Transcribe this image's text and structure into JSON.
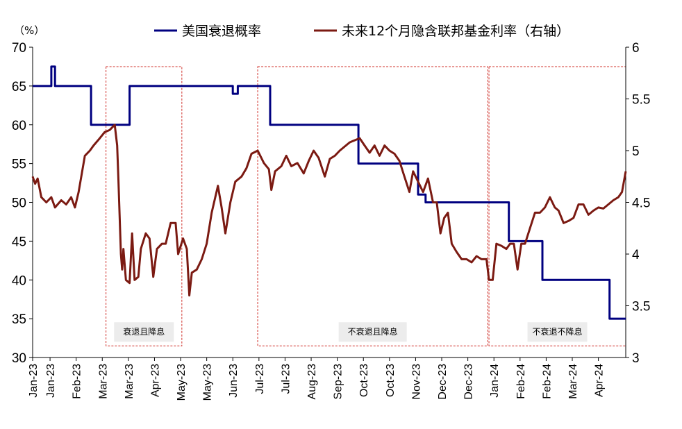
{
  "chart_data": {
    "type": "line",
    "unit_label": "（%）",
    "yleft": {
      "min": 30,
      "max": 70,
      "ticks": [
        30,
        35,
        40,
        45,
        50,
        55,
        60,
        65,
        70
      ]
    },
    "yright": {
      "min": 3,
      "max": 6,
      "ticks": [
        "3",
        "3.5",
        "4",
        "4.5",
        "5",
        "5.5",
        "6"
      ]
    },
    "x": {
      "start": "2023-01-01",
      "end": "2024-04-22",
      "tick_dates": [
        "2023-01-01",
        "2023-01-15",
        "2023-02-05",
        "2023-02-26",
        "2023-03-19",
        "2023-04-09",
        "2023-04-30",
        "2023-05-21",
        "2023-06-11",
        "2023-07-02",
        "2023-07-23",
        "2023-08-13",
        "2023-09-03",
        "2023-09-24",
        "2023-10-15",
        "2023-11-05",
        "2023-11-26",
        "2023-12-17",
        "2024-01-07",
        "2024-01-28",
        "2024-02-18",
        "2024-03-10",
        "2024-03-31"
      ],
      "tick_labels": [
        "Jan-23",
        "Jan-23",
        "Feb-23",
        "Mar-23",
        "Mar-23",
        "Apr-23",
        "May-23",
        "May-23",
        "Jun-23",
        "Jul-23",
        "Jul-23",
        "Aug-23",
        "Sep-23",
        "Oct-23",
        "Oct-23",
        "Nov-23",
        "Dec-23",
        "Dec-23",
        "Jan-24",
        "Feb-24",
        "Feb-24",
        "Mar-24",
        "Apr-24"
      ]
    },
    "series": [
      {
        "name": "美国衰退概率",
        "axis": "left",
        "color": "#000080",
        "points": [
          [
            "2023-01-01",
            65
          ],
          [
            "2023-01-16",
            65
          ],
          [
            "2023-01-16",
            67.5
          ],
          [
            "2023-01-19",
            67.5
          ],
          [
            "2023-01-19",
            65
          ],
          [
            "2023-02-17",
            65
          ],
          [
            "2023-02-17",
            60
          ],
          [
            "2023-03-20",
            60
          ],
          [
            "2023-03-20",
            65
          ],
          [
            "2023-06-11",
            65
          ],
          [
            "2023-06-11",
            64
          ],
          [
            "2023-06-15",
            64
          ],
          [
            "2023-06-15",
            65
          ],
          [
            "2023-07-11",
            65
          ],
          [
            "2023-07-11",
            60
          ],
          [
            "2023-09-20",
            60
          ],
          [
            "2023-09-20",
            55
          ],
          [
            "2023-11-07",
            55
          ],
          [
            "2023-11-07",
            51
          ],
          [
            "2023-11-13",
            51
          ],
          [
            "2023-11-13",
            50
          ],
          [
            "2024-01-19",
            50
          ],
          [
            "2024-01-19",
            45
          ],
          [
            "2024-02-15",
            45
          ],
          [
            "2024-02-15",
            40
          ],
          [
            "2024-04-09",
            40
          ],
          [
            "2024-04-09",
            35
          ],
          [
            "2024-04-22",
            35
          ]
        ]
      },
      {
        "name": "未来12个月隐含联邦基金利率（右轴）",
        "axis": "right",
        "color": "#7b1a12",
        "points": [
          [
            "2023-01-01",
            4.75
          ],
          [
            "2023-01-03",
            4.68
          ],
          [
            "2023-01-05",
            4.73
          ],
          [
            "2023-01-08",
            4.55
          ],
          [
            "2023-01-12",
            4.5
          ],
          [
            "2023-01-16",
            4.55
          ],
          [
            "2023-01-19",
            4.45
          ],
          [
            "2023-01-24",
            4.52
          ],
          [
            "2023-01-28",
            4.48
          ],
          [
            "2023-02-01",
            4.55
          ],
          [
            "2023-02-04",
            4.45
          ],
          [
            "2023-02-07",
            4.6
          ],
          [
            "2023-02-12",
            4.95
          ],
          [
            "2023-02-16",
            5.0
          ],
          [
            "2023-02-19",
            5.05
          ],
          [
            "2023-02-24",
            5.12
          ],
          [
            "2023-02-28",
            5.18
          ],
          [
            "2023-03-04",
            5.2
          ],
          [
            "2023-03-08",
            5.25
          ],
          [
            "2023-03-10",
            5.05
          ],
          [
            "2023-03-11",
            4.72
          ],
          [
            "2023-03-13",
            4.0
          ],
          [
            "2023-03-14",
            3.85
          ],
          [
            "2023-03-15",
            4.05
          ],
          [
            "2023-03-17",
            3.75
          ],
          [
            "2023-03-20",
            3.72
          ],
          [
            "2023-03-22",
            4.2
          ],
          [
            "2023-03-24",
            3.75
          ],
          [
            "2023-03-27",
            3.78
          ],
          [
            "2023-03-29",
            4.05
          ],
          [
            "2023-04-02",
            4.2
          ],
          [
            "2023-04-05",
            4.15
          ],
          [
            "2023-04-08",
            3.78
          ],
          [
            "2023-04-11",
            4.05
          ],
          [
            "2023-04-15",
            4.1
          ],
          [
            "2023-04-18",
            4.1
          ],
          [
            "2023-04-22",
            4.3
          ],
          [
            "2023-04-26",
            4.3
          ],
          [
            "2023-04-28",
            4.0
          ],
          [
            "2023-05-02",
            4.15
          ],
          [
            "2023-05-05",
            4.05
          ],
          [
            "2023-05-07",
            3.6
          ],
          [
            "2023-05-09",
            3.82
          ],
          [
            "2023-05-13",
            3.85
          ],
          [
            "2023-05-17",
            3.95
          ],
          [
            "2023-05-21",
            4.1
          ],
          [
            "2023-05-25",
            4.4
          ],
          [
            "2023-05-30",
            4.66
          ],
          [
            "2023-06-02",
            4.45
          ],
          [
            "2023-06-05",
            4.2
          ],
          [
            "2023-06-09",
            4.5
          ],
          [
            "2023-06-13",
            4.7
          ],
          [
            "2023-06-18",
            4.75
          ],
          [
            "2023-06-22",
            4.83
          ],
          [
            "2023-06-26",
            4.97
          ],
          [
            "2023-07-01",
            5.0
          ],
          [
            "2023-07-06",
            4.88
          ],
          [
            "2023-07-10",
            4.82
          ],
          [
            "2023-07-12",
            4.62
          ],
          [
            "2023-07-15",
            4.8
          ],
          [
            "2023-07-20",
            4.85
          ],
          [
            "2023-07-24",
            4.95
          ],
          [
            "2023-07-28",
            4.85
          ],
          [
            "2023-08-02",
            4.88
          ],
          [
            "2023-08-07",
            4.78
          ],
          [
            "2023-08-11",
            4.9
          ],
          [
            "2023-08-15",
            5.0
          ],
          [
            "2023-08-19",
            4.93
          ],
          [
            "2023-08-24",
            4.75
          ],
          [
            "2023-08-28",
            4.92
          ],
          [
            "2023-09-01",
            4.95
          ],
          [
            "2023-09-05",
            5.0
          ],
          [
            "2023-09-09",
            5.04
          ],
          [
            "2023-09-13",
            5.08
          ],
          [
            "2023-09-17",
            5.1
          ],
          [
            "2023-09-21",
            5.12
          ],
          [
            "2023-09-25",
            5.05
          ],
          [
            "2023-09-29",
            4.98
          ],
          [
            "2023-10-03",
            5.05
          ],
          [
            "2023-10-07",
            4.95
          ],
          [
            "2023-10-11",
            5.05
          ],
          [
            "2023-10-15",
            5.0
          ],
          [
            "2023-10-19",
            4.97
          ],
          [
            "2023-10-23",
            4.9
          ],
          [
            "2023-10-27",
            4.75
          ],
          [
            "2023-10-31",
            4.6
          ],
          [
            "2023-11-03",
            4.8
          ],
          [
            "2023-11-07",
            4.7
          ],
          [
            "2023-11-11",
            4.6
          ],
          [
            "2023-11-15",
            4.73
          ],
          [
            "2023-11-19",
            4.5
          ],
          [
            "2023-11-22",
            4.5
          ],
          [
            "2023-11-25",
            4.2
          ],
          [
            "2023-11-28",
            4.35
          ],
          [
            "2023-12-01",
            4.4
          ],
          [
            "2023-12-04",
            4.1
          ],
          [
            "2023-12-08",
            4.02
          ],
          [
            "2023-12-12",
            3.95
          ],
          [
            "2023-12-16",
            3.95
          ],
          [
            "2023-12-20",
            3.92
          ],
          [
            "2023-12-24",
            3.98
          ],
          [
            "2023-12-28",
            3.95
          ],
          [
            "2024-01-01",
            3.95
          ],
          [
            "2024-01-03",
            3.75
          ],
          [
            "2024-01-06",
            3.75
          ],
          [
            "2024-01-09",
            4.1
          ],
          [
            "2024-01-13",
            4.08
          ],
          [
            "2024-01-17",
            4.05
          ],
          [
            "2024-01-20",
            4.1
          ],
          [
            "2024-01-23",
            4.1
          ],
          [
            "2024-01-26",
            3.85
          ],
          [
            "2024-01-29",
            4.1
          ],
          [
            "2024-02-01",
            4.1
          ],
          [
            "2024-02-05",
            4.25
          ],
          [
            "2024-02-09",
            4.4
          ],
          [
            "2024-02-13",
            4.4
          ],
          [
            "2024-02-17",
            4.45
          ],
          [
            "2024-02-21",
            4.55
          ],
          [
            "2024-02-25",
            4.45
          ],
          [
            "2024-02-28",
            4.42
          ],
          [
            "2024-03-03",
            4.3
          ],
          [
            "2024-03-07",
            4.32
          ],
          [
            "2024-03-11",
            4.35
          ],
          [
            "2024-03-15",
            4.48
          ],
          [
            "2024-03-19",
            4.48
          ],
          [
            "2024-03-23",
            4.38
          ],
          [
            "2024-03-27",
            4.42
          ],
          [
            "2024-03-31",
            4.45
          ],
          [
            "2024-04-04",
            4.44
          ],
          [
            "2024-04-08",
            4.48
          ],
          [
            "2024-04-12",
            4.52
          ],
          [
            "2024-04-16",
            4.55
          ],
          [
            "2024-04-19",
            4.6
          ],
          [
            "2024-04-22",
            4.8
          ]
        ]
      }
    ],
    "annotations": [
      {
        "label": "衰退且降息",
        "start": "2023-03-01",
        "end": "2023-05-01",
        "ymin": 31.5,
        "ymax": 67.5
      },
      {
        "label": "不衰退且降息",
        "start": "2023-07-01",
        "end": "2024-01-02",
        "ymin": 31.5,
        "ymax": 67.5
      },
      {
        "label": "不衰退不降息",
        "start": "2024-01-03",
        "end": "2024-04-22",
        "ymin": 31.5,
        "ymax": 67.5
      }
    ],
    "legend_position": "top-center"
  }
}
